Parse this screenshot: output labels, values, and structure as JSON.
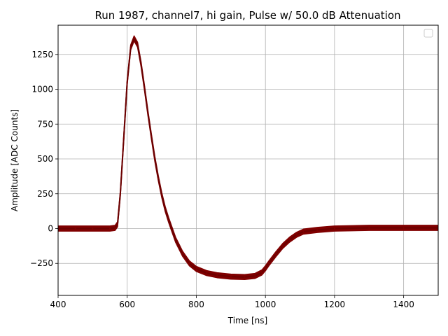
{
  "chart_data": {
    "type": "line",
    "title": "Run 1987, channel7, hi gain, Pulse w/ 50.0 dB Attenuation",
    "xlabel": "Time [ns]",
    "ylabel": "Amplitude [ADC Counts]",
    "xlim": [
      400,
      1500
    ],
    "ylim": [
      -480,
      1460
    ],
    "xticks": [
      400,
      600,
      800,
      1000,
      1200,
      1400
    ],
    "xtick_labels": [
      "400",
      "600",
      "800",
      "1000",
      "1200",
      "1400"
    ],
    "yticks": [
      -250,
      0,
      250,
      500,
      750,
      1000,
      1250
    ],
    "ytick_labels": [
      "−250",
      "0",
      "250",
      "500",
      "750",
      "1000",
      "1250"
    ],
    "grid": true,
    "legend": "top-right, empty",
    "line_color": "#800000",
    "band_halfwidth": 18,
    "series": [
      {
        "x": [
          400,
          450,
          500,
          550,
          565,
          572,
          580,
          590,
          600,
          610,
          620,
          630,
          640,
          650,
          660,
          670,
          680,
          690,
          700,
          710,
          720,
          740,
          760,
          780,
          800,
          830,
          860,
          900,
          940,
          970,
          990,
          1000,
          1010,
          1030,
          1050,
          1070,
          1090,
          1110,
          1150,
          1200,
          1300,
          1400,
          1500
        ],
        "y": [
          0,
          0,
          0,
          0,
          5,
          30,
          250,
          650,
          1050,
          1300,
          1365,
          1320,
          1180,
          1010,
          830,
          660,
          500,
          360,
          240,
          140,
          60,
          -80,
          -180,
          -250,
          -290,
          -320,
          -335,
          -345,
          -348,
          -340,
          -315,
          -285,
          -250,
          -185,
          -125,
          -80,
          -45,
          -22,
          -10,
          0,
          5,
          5,
          5
        ]
      }
    ]
  }
}
